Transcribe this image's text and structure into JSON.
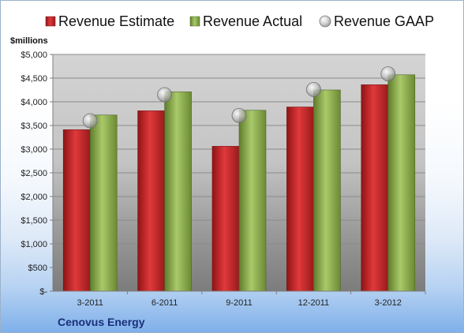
{
  "chart_data": {
    "type": "bar",
    "unit_label": "$millions",
    "footer": "Cenovus Energy",
    "categories": [
      "3-2011",
      "6-2011",
      "9-2011",
      "12-2011",
      "3-2012"
    ],
    "series": [
      {
        "name": "Revenue Estimate",
        "type": "bar",
        "color": "#c0282a",
        "values": [
          3410,
          3810,
          3060,
          3890,
          4360
        ]
      },
      {
        "name": "Revenue Actual",
        "type": "bar",
        "color": "#8db050",
        "values": [
          3720,
          4210,
          3820,
          4250,
          4570
        ]
      },
      {
        "name": "Revenue GAAP",
        "type": "marker",
        "color": "#b0b0b0",
        "values": [
          3600,
          4150,
          3710,
          4260,
          4590
        ]
      }
    ],
    "yticks": [
      "$-",
      "$500",
      "$1,000",
      "$1,500",
      "$2,000",
      "$2,500",
      "$3,000",
      "$3,500",
      "$4,000",
      "$4,500",
      "$5,000"
    ],
    "ylim": [
      0,
      5000
    ],
    "ystep": 500,
    "grid": true,
    "legend_position": "top"
  }
}
